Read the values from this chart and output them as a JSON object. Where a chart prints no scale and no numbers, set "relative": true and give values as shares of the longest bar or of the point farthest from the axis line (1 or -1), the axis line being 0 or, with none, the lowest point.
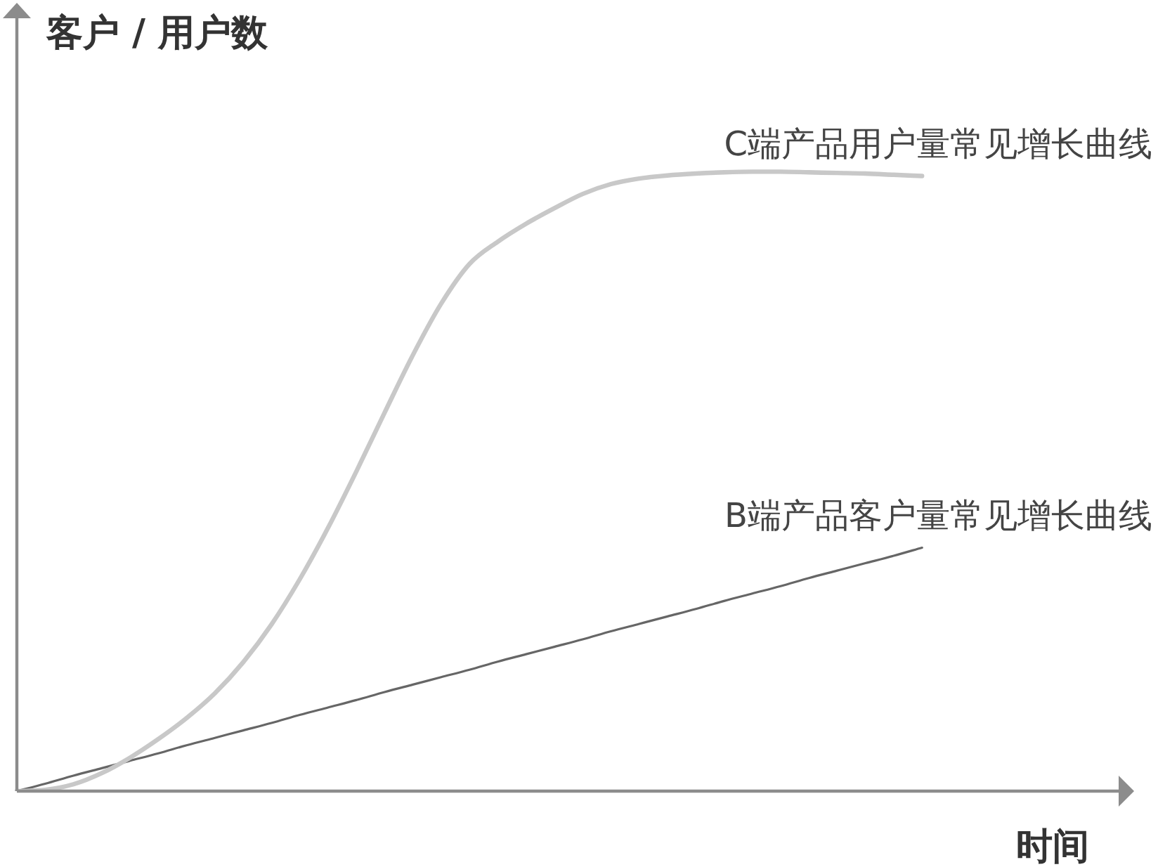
{
  "chart_data": {
    "type": "line",
    "relative": true,
    "xlabel": "时间",
    "ylabel": "客户 / 用户数",
    "categories": [
      null,
      null,
      null,
      null,
      null,
      null,
      null,
      null,
      null,
      null,
      null,
      null,
      null,
      null,
      null,
      null,
      null,
      null,
      null,
      null,
      null,
      null,
      null,
      null,
      null,
      null,
      null,
      null,
      null,
      null,
      null,
      null,
      null,
      null,
      null,
      null,
      null,
      null,
      null,
      null
    ],
    "series": [
      {
        "name": "C端产品用户量常见增长曲线",
        "color": "#c8c8c8",
        "values": [
          0,
          0.002,
          0.011,
          0.029,
          0.054,
          0.084,
          0.118,
          0.158,
          0.208,
          0.269,
          0.342,
          0.425,
          0.516,
          0.611,
          0.704,
          0.787,
          0.851,
          0.887,
          0.916,
          0.941,
          0.964,
          0.98,
          0.989,
          0.994,
          0.997,
          0.999,
          1,
          1,
          0.999,
          0.998,
          0.997,
          0.995,
          0.993,
          null,
          null,
          null,
          null,
          null,
          null,
          null
        ]
      },
      {
        "name": "B端产品客户量常见增长曲线",
        "color": "#666666",
        "values": [
          0,
          0.012,
          0.025,
          0.037,
          0.049,
          0.061,
          0.074,
          0.086,
          0.098,
          0.11,
          0.123,
          0.135,
          0.147,
          0.16,
          0.172,
          0.184,
          0.196,
          0.209,
          0.221,
          0.233,
          0.245,
          0.258,
          0.27,
          0.282,
          0.294,
          0.307,
          0.319,
          0.331,
          0.344,
          0.356,
          0.368,
          0.38,
          0.393,
          null,
          null,
          null,
          null,
          null,
          null,
          null
        ]
      }
    ],
    "legend": false,
    "marker": "none",
    "line_style": "solid"
  }
}
